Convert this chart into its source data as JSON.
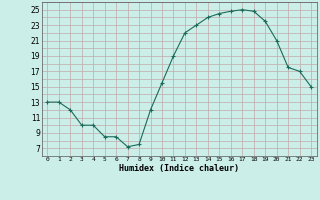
{
  "x": [
    0,
    1,
    2,
    3,
    4,
    5,
    6,
    7,
    8,
    9,
    10,
    11,
    12,
    13,
    14,
    15,
    16,
    17,
    18,
    19,
    20,
    21,
    22,
    23
  ],
  "y": [
    13,
    13,
    12,
    10,
    10,
    8.5,
    8.5,
    7.2,
    7.5,
    12,
    15.5,
    19,
    22,
    23,
    24,
    24.5,
    24.8,
    25,
    24.8,
    23.5,
    21,
    17.5,
    17,
    15
  ],
  "line_color": "#1a6b5a",
  "marker_color": "#1a6b5a",
  "bg_color": "#cceee8",
  "grid_color": "#c0aaaa",
  "xlabel": "Humidex (Indice chaleur)",
  "xlim": [
    -0.5,
    23.5
  ],
  "ylim": [
    6,
    26
  ],
  "yticks": [
    7,
    9,
    11,
    13,
    15,
    17,
    19,
    21,
    23,
    25
  ],
  "xticks": [
    0,
    1,
    2,
    3,
    4,
    5,
    6,
    7,
    8,
    9,
    10,
    11,
    12,
    13,
    14,
    15,
    16,
    17,
    18,
    19,
    20,
    21,
    22,
    23
  ],
  "xtick_labels": [
    "0",
    "1",
    "2",
    "3",
    "4",
    "5",
    "6",
    "7",
    "8",
    "9",
    "10",
    "11",
    "12",
    "13",
    "14",
    "15",
    "16",
    "17",
    "18",
    "19",
    "20",
    "21",
    "22",
    "23"
  ]
}
